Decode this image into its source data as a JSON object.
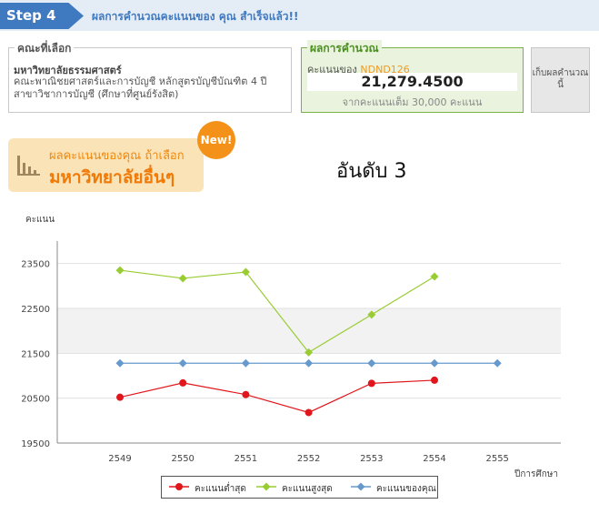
{
  "step": {
    "tag": "Step 4",
    "title": "ผลการคำนวณคะแนนของ คุณ สำเร็จแล้ว!!"
  },
  "selected": {
    "legend": "คณะที่เลือก",
    "university": "มหาวิทยาลัยธรรมศาสตร์",
    "program": "คณะพาณิชยศาสตร์และการบัญชี หลักสูตรบัญชีบัณฑิต 4 ปี สาขาวิชาการบัญชี (ศึกษาที่ศูนย์รังสิต)"
  },
  "result": {
    "legend": "ผลการคำนวณ",
    "label": "คะแนนของ",
    "code": "NDND126",
    "score": "21,279.4500",
    "full": "จากคะแนนเต็ม 30,000 คะแนน"
  },
  "save_button": "เก็บผลคำนวณนี้",
  "banner": {
    "line1": "ผลคะแนนของคุณ ถ้าเลือก",
    "line2": "มหาวิทยาลัยอื่นๆ",
    "badge": "New!"
  },
  "rank": "อันดับ   3",
  "colors": {
    "min": "#e0161c",
    "max": "#99cc33",
    "mine": "#6699cc",
    "accent": "#3f79c0"
  },
  "icons": {
    "banner": "bar-chart-icon"
  },
  "chart_data": {
    "type": "line",
    "ylabel": "คะแนน",
    "xlabel": "ปีการศึกษา",
    "ylim": [
      19500,
      24000
    ],
    "yticks": [
      19500,
      20500,
      21500,
      22500,
      23500
    ],
    "categories": [
      "2549",
      "2550",
      "2551",
      "2552",
      "2553",
      "2554",
      "2555"
    ],
    "series": [
      {
        "name": "คะแนนต่ำสุด",
        "color": "#e0161c",
        "values": [
          20520,
          20840,
          20580,
          20180,
          20830,
          20900,
          null
        ]
      },
      {
        "name": "คะแนนสูงสุด",
        "color": "#99cc33",
        "values": [
          23350,
          23170,
          23310,
          21520,
          22360,
          23210,
          null
        ]
      },
      {
        "name": "คะแนนของคุณ",
        "color": "#6699cc",
        "values": [
          21279.45,
          21279.45,
          21279.45,
          21279.45,
          21279.45,
          21279.45,
          21279.45
        ]
      }
    ],
    "grid": true,
    "alternating_bands": true,
    "legend_position": "bottom"
  }
}
